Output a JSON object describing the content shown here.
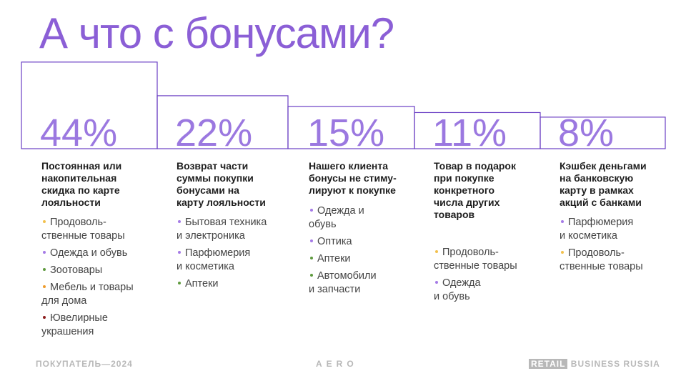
{
  "header": {
    "title": "А что с бонусами?"
  },
  "bullet_colors": {
    "yellow": "#f2c14e",
    "purple": "#a57be6",
    "green": "#5e9a3e",
    "orange": "#ee9b2c",
    "red": "#8c1c1c"
  },
  "columns": [
    {
      "value": 44,
      "value_label": "44%",
      "heading": "Постоянная или\nнакопительная\nскидка по карте\nлояльности",
      "items": [
        {
          "text": "Продоволь-\nственные товары",
          "color": "yellow"
        },
        {
          "text": "Одежда и обувь",
          "color": "purple"
        },
        {
          "text": "Зоотовары",
          "color": "green"
        },
        {
          "text": "Мебель и товары\nдля дома",
          "color": "orange"
        },
        {
          "text": "Ювелирные\nукрашения",
          "color": "red"
        }
      ]
    },
    {
      "value": 22,
      "value_label": "22%",
      "heading": "Возврат части\nсуммы покупки\nбонусами на\nкарту лояльности",
      "items": [
        {
          "text": "Бытовая техника\nи электроника",
          "color": "purple"
        },
        {
          "text": "Парфюмерия\nи косметика",
          "color": "purple"
        },
        {
          "text": "Аптеки",
          "color": "green"
        }
      ]
    },
    {
      "value": 15,
      "value_label": "15%",
      "heading": "Нашего клиента\nбонусы не стиму-\nлируют к покупке",
      "items": [
        {
          "text": "Одежда и\nобувь",
          "color": "purple"
        },
        {
          "text": "Оптика",
          "color": "purple"
        },
        {
          "text": "Аптеки",
          "color": "green"
        },
        {
          "text": "Автомобили\nи запчасти",
          "color": "green"
        }
      ]
    },
    {
      "value": 11,
      "value_label": "11%",
      "heading": "Товар в подарок\nпри покупке\nконкретного\nчисла других\nтоваров",
      "items": [
        {
          "text": "Продоволь-\nственные товары",
          "color": "yellow"
        },
        {
          "text": "Одежда\nи обувь",
          "color": "purple"
        }
      ]
    },
    {
      "value": 8,
      "value_label": "8%",
      "heading": "Кэшбек деньгами\nна банковскую\nкарту в рамках\nакций с банками",
      "items": [
        {
          "text": "Парфюмерия\nи косметика",
          "color": "purple"
        },
        {
          "text": "Продоволь-\nственные товары",
          "color": "yellow"
        }
      ]
    }
  ],
  "footer": {
    "left": "ПОКУПАТЕЛЬ—2024",
    "center": "AERO",
    "right_badge": "RETAIL",
    "right": "BUSINESS RUSSIA"
  }
}
